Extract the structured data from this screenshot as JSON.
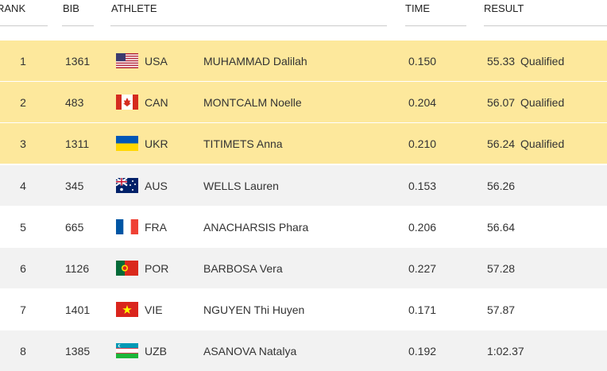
{
  "header": {
    "rank": "RANK",
    "bib": "BIB",
    "athlete": "ATHLETE",
    "time": "TIME",
    "result": "RESULT"
  },
  "table": {
    "rows": [
      {
        "rank": "1",
        "bib": "1361",
        "country": "USA",
        "athlete": "MUHAMMAD Dalilah",
        "time": "0.150",
        "result": "55.33",
        "qualification": "Qualified"
      },
      {
        "rank": "2",
        "bib": "483",
        "country": "CAN",
        "athlete": "MONTCALM Noelle",
        "time": "0.204",
        "result": "56.07",
        "qualification": "Qualified"
      },
      {
        "rank": "3",
        "bib": "1311",
        "country": "UKR",
        "athlete": "TITIMETS Anna",
        "time": "0.210",
        "result": "56.24",
        "qualification": "Qualified"
      },
      {
        "rank": "4",
        "bib": "345",
        "country": "AUS",
        "athlete": "WELLS Lauren",
        "time": "0.153",
        "result": "56.26"
      },
      {
        "rank": "5",
        "bib": "665",
        "country": "FRA",
        "athlete": "ANACHARSIS Phara",
        "time": "0.206",
        "result": "56.64"
      },
      {
        "rank": "6",
        "bib": "1126",
        "country": "POR",
        "athlete": "BARBOSA Vera",
        "time": "0.227",
        "result": "57.28"
      },
      {
        "rank": "7",
        "bib": "1401",
        "country": "VIE",
        "athlete": "NGUYEN Thi Huyen",
        "time": "0.171",
        "result": "57.87"
      },
      {
        "rank": "8",
        "bib": "1385",
        "country": "UZB",
        "athlete": "ASANOVA Natalya",
        "time": "0.192",
        "result": "1:02.37"
      }
    ]
  }
}
